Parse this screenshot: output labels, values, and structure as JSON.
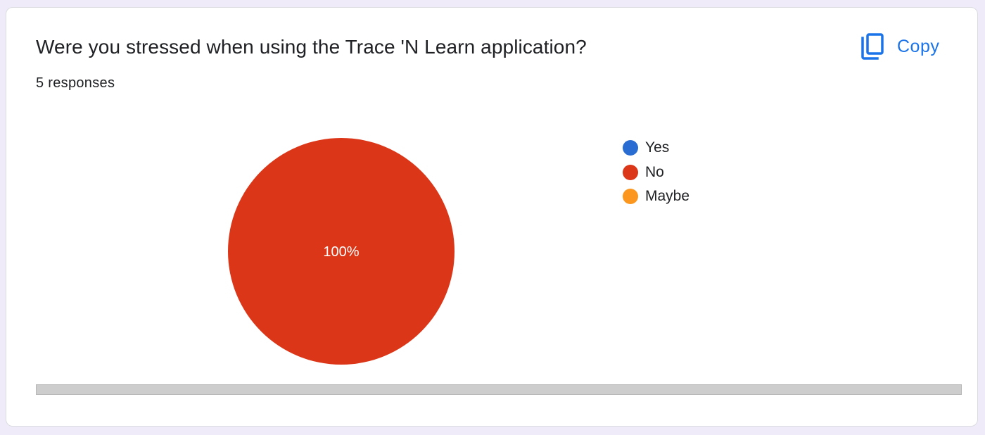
{
  "question": {
    "title": "Were you stressed when using the Trace 'N Learn application?",
    "responses": "5 responses"
  },
  "toolbar": {
    "copy_label": "Copy",
    "copy_icon": "copy-icon"
  },
  "colors": {
    "accent": "#1a73e8",
    "yes": "#2a6dd2",
    "no": "#dc3618",
    "maybe": "#fb961e"
  },
  "chart_data": {
    "type": "pie",
    "categories": [
      "Yes",
      "No",
      "Maybe"
    ],
    "values": [
      0,
      100,
      0
    ],
    "slice_labels": [
      "",
      "100%",
      ""
    ],
    "colors": [
      "#2a6dd2",
      "#dc3618",
      "#fb961e"
    ],
    "legend_position": "right"
  }
}
